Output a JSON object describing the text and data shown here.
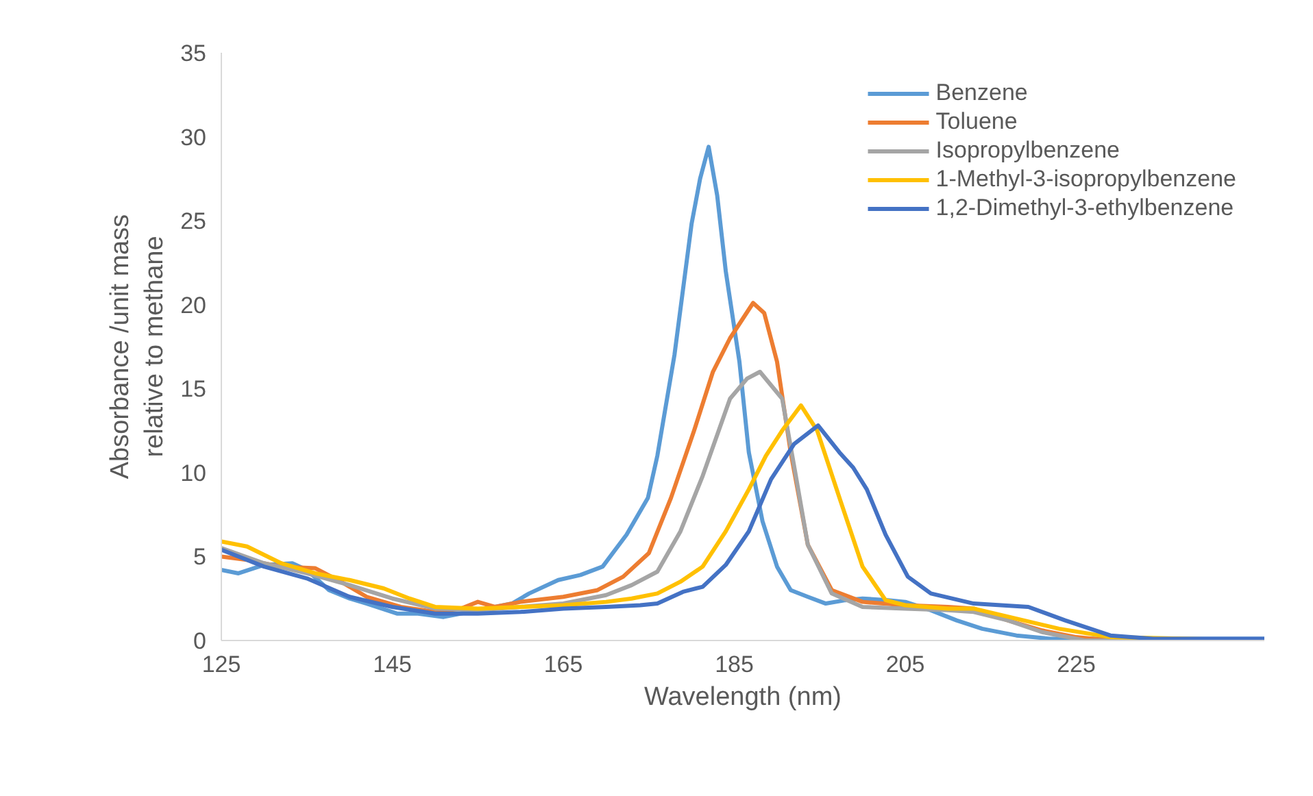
{
  "chart_data": {
    "type": "line",
    "xlabel": "Wavelength (nm)",
    "ylabel": "Absorbance /unit mass\nrelative to methane",
    "xlim": [
      125,
      247
    ],
    "xticks": [
      125,
      145,
      165,
      185,
      205,
      225
    ],
    "ylim": [
      0,
      35
    ],
    "yticks": [
      0,
      5,
      10,
      15,
      20,
      25,
      30,
      35
    ],
    "grid": false,
    "legend": "top right",
    "line_style": "solid",
    "series": [
      {
        "name": "Benzene",
        "color": "#5b9bd5",
        "x": [
          125,
          127,
          130,
          133.3,
          135,
          137.6,
          140,
          142,
          145.6,
          148,
          151,
          154,
          157,
          159,
          161,
          164.4,
          167,
          169.6,
          172.4,
          174.9,
          176,
          178,
          180,
          181,
          182,
          183,
          184,
          185.6,
          186.7,
          188.3,
          190,
          191.6,
          193.6,
          195.7,
          198,
          200,
          203,
          205,
          208,
          211,
          214,
          218,
          222,
          230,
          240,
          247
        ],
        "values": [
          4.2,
          4.0,
          4.5,
          4.6,
          4.2,
          3.0,
          2.5,
          2.2,
          1.6,
          1.6,
          1.4,
          1.7,
          2.0,
          2.2,
          2.8,
          3.6,
          3.9,
          4.4,
          6.3,
          8.5,
          11,
          17,
          24.8,
          27.5,
          29.4,
          26.5,
          22,
          16.6,
          11.2,
          7.1,
          4.4,
          3.0,
          2.6,
          2.2,
          2.4,
          2.5,
          2.4,
          2.3,
          1.8,
          1.2,
          0.7,
          0.3,
          0.1,
          0.1,
          0.1,
          0.1
        ]
      },
      {
        "name": "Toluene",
        "color": "#ed7d31",
        "x": [
          125,
          128,
          132,
          136,
          139,
          142,
          146,
          150,
          153,
          155,
          157,
          160,
          165,
          169,
          172,
          175,
          177.6,
          180.3,
          182.5,
          184.5,
          187.2,
          188.5,
          190,
          191.6,
          193.6,
          196.4,
          200,
          205,
          210,
          213,
          217,
          221,
          225,
          229,
          247
        ],
        "values": [
          5.0,
          4.8,
          4.4,
          4.3,
          3.5,
          2.6,
          2.0,
          1.7,
          1.9,
          2.3,
          2.0,
          2.3,
          2.6,
          3.0,
          3.8,
          5.2,
          8.5,
          12.5,
          16,
          18,
          20.1,
          19.5,
          16.6,
          11.2,
          5.7,
          3.0,
          2.3,
          2.1,
          2.0,
          1.9,
          1.2,
          0.6,
          0.2,
          0,
          0
        ]
      },
      {
        "name": "Isopropylbenzene",
        "color": "#a5a5a5",
        "x": [
          125,
          130,
          135,
          140,
          145,
          150,
          155,
          160,
          165,
          170,
          173,
          176,
          178.7,
          181.3,
          184.5,
          186.5,
          188,
          190.6,
          192.2,
          193.6,
          196.4,
          200,
          205,
          210,
          213,
          217,
          221,
          226,
          247
        ],
        "values": [
          5.5,
          4.6,
          4.0,
          3.3,
          2.5,
          1.9,
          1.8,
          2.0,
          2.2,
          2.7,
          3.3,
          4.1,
          6.5,
          9.8,
          14.4,
          15.6,
          16.0,
          14.4,
          9.8,
          5.7,
          2.8,
          2.0,
          1.9,
          1.8,
          1.7,
          1.2,
          0.5,
          0,
          0
        ]
      },
      {
        "name": "1-Methyl-3-isopropylbenzene",
        "color": "#ffc000",
        "x": [
          125,
          128,
          132,
          136,
          140,
          144,
          147,
          150,
          155,
          160,
          165,
          170,
          173,
          176,
          178.7,
          181.3,
          184,
          186.7,
          188.7,
          190.6,
          192.8,
          194.7,
          197.3,
          200,
          202.7,
          205,
          210,
          213,
          218,
          223,
          229,
          247
        ],
        "values": [
          5.9,
          5.6,
          4.6,
          4.0,
          3.6,
          3.1,
          2.5,
          2.0,
          1.9,
          2.0,
          2.1,
          2.3,
          2.5,
          2.8,
          3.5,
          4.4,
          6.5,
          9.0,
          11.0,
          12.5,
          14.0,
          12.5,
          8.5,
          4.4,
          2.4,
          2.1,
          1.9,
          1.9,
          1.3,
          0.7,
          0.2,
          0
        ]
      },
      {
        "name": "1,2-Dimethyl-3-ethylbenzene",
        "color": "#4472c4",
        "x": [
          125,
          130,
          135,
          140,
          145,
          150,
          155,
          160,
          165,
          170,
          174,
          176,
          179,
          181.3,
          184,
          186.7,
          189.3,
          192,
          194.8,
          197.3,
          198.9,
          200.5,
          202.7,
          205.3,
          208,
          213,
          219.4,
          223.7,
          229,
          234,
          240,
          247
        ],
        "values": [
          5.4,
          4.4,
          3.7,
          2.6,
          2.0,
          1.6,
          1.6,
          1.7,
          1.9,
          2.0,
          2.1,
          2.2,
          2.9,
          3.2,
          4.5,
          6.5,
          9.6,
          11.7,
          12.8,
          11.2,
          10.3,
          9.0,
          6.3,
          3.8,
          2.8,
          2.2,
          2.0,
          1.2,
          0.3,
          0.1,
          0.1,
          0.1
        ]
      }
    ]
  }
}
